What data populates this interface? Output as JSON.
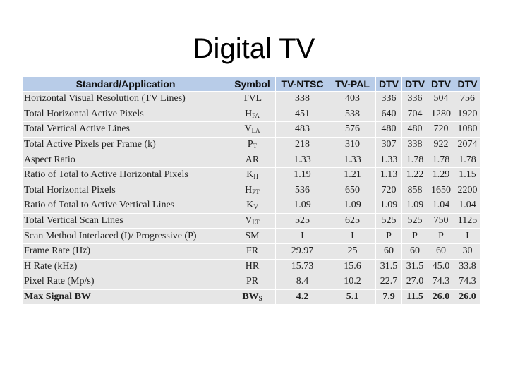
{
  "slide": {
    "title": "Digital TV"
  },
  "table": {
    "headers": [
      "Standard/Application",
      "Symbol",
      "TV-NTSC",
      "TV-PAL",
      "DTV",
      "DTV",
      "DTV",
      "DTV"
    ],
    "rows": [
      {
        "label": "Horizontal Visual Resolution (TV Lines)",
        "sym": "TVL",
        "sub": "",
        "values": [
          "338",
          "403",
          "336",
          "336",
          "504",
          "756"
        ]
      },
      {
        "label": "Total Horizontal Active Pixels",
        "sym": "H",
        "sub": "PA",
        "values": [
          "451",
          "538",
          "640",
          "704",
          "1280",
          "1920"
        ]
      },
      {
        "label": "Total Vertical Active Lines",
        "sym": "V",
        "sub": "LA",
        "values": [
          "483",
          "576",
          "480",
          "480",
          "720",
          "1080"
        ]
      },
      {
        "label": "Total Active Pixels per Frame (k)",
        "sym": "P",
        "sub": "T",
        "values": [
          "218",
          "310",
          "307",
          "338",
          "922",
          "2074"
        ]
      },
      {
        "label": "Aspect Ratio",
        "sym": "AR",
        "sub": "",
        "values": [
          "1.33",
          "1.33",
          "1.33",
          "1.78",
          "1.78",
          "1.78"
        ]
      },
      {
        "label": "Ratio of Total to Active Horizontal Pixels",
        "sym": "K",
        "sub": "H",
        "values": [
          "1.19",
          "1.21",
          "1.13",
          "1.22",
          "1.29",
          "1.15"
        ]
      },
      {
        "label": "Total Horizontal Pixels",
        "sym": "H",
        "sub": "PT",
        "values": [
          "536",
          "650",
          "720",
          "858",
          "1650",
          "2200"
        ]
      },
      {
        "label": "Ratio of Total to Active Vertical Lines",
        "sym": "K",
        "sub": "V",
        "values": [
          "1.09",
          "1.09",
          "1.09",
          "1.09",
          "1.04",
          "1.04"
        ]
      },
      {
        "label": "Total Vertical Scan Lines",
        "sym": "V",
        "sub": "LT",
        "values": [
          "525",
          "625",
          "525",
          "525",
          "750",
          "1125"
        ]
      },
      {
        "label": "Scan Method Interlaced (I)/ Progressive (P)",
        "sym": "SM",
        "sub": "",
        "values": [
          "I",
          "I",
          "P",
          "P",
          "P",
          "I"
        ]
      },
      {
        "label": "Frame Rate (Hz)",
        "sym": "FR",
        "sub": "",
        "values": [
          "29.97",
          "25",
          "60",
          "60",
          "60",
          "30"
        ]
      },
      {
        "label": "H Rate (kHz)",
        "sym": "HR",
        "sub": "",
        "values": [
          "15.73",
          "15.6",
          "31.5",
          "31.5",
          "45.0",
          "33.8"
        ]
      },
      {
        "label": "Pixel Rate (Mp/s)",
        "sym": "PR",
        "sub": "",
        "values": [
          "8.4",
          "10.2",
          "22.7",
          "27.0",
          "74.3",
          "74.3"
        ]
      },
      {
        "label": "Max Signal BW",
        "sym": "BW",
        "sub": "S",
        "values": [
          "4.2",
          "5.1",
          "7.9",
          "11.5",
          "26.0",
          "26.0"
        ],
        "bold": true
      }
    ]
  }
}
